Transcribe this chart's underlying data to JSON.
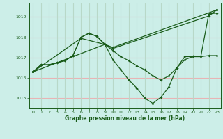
{
  "title": "Graphe pression niveau de la mer (hPa)",
  "bg_color": "#cceee8",
  "grid_color_h": "#e8b4b4",
  "grid_color_v": "#b8d8c8",
  "line_color": "#1a5c1a",
  "xlim": [
    -0.5,
    23.5
  ],
  "ylim": [
    1014.5,
    1019.7
  ],
  "yticks": [
    1015,
    1016,
    1017,
    1018,
    1019
  ],
  "xticks": [
    0,
    1,
    2,
    3,
    4,
    5,
    6,
    7,
    8,
    9,
    10,
    11,
    12,
    13,
    14,
    15,
    16,
    17,
    18,
    19,
    20,
    21,
    22,
    23
  ],
  "series1_x": [
    0,
    1,
    2,
    3,
    4,
    5,
    6,
    7,
    8,
    9,
    10,
    11,
    12,
    13,
    14,
    15,
    16,
    17,
    18,
    19,
    20,
    21,
    22,
    23
  ],
  "series1_y": [
    1016.3,
    1016.65,
    1016.65,
    1016.75,
    1016.85,
    1017.1,
    1018.0,
    1018.2,
    1018.05,
    1017.65,
    1016.9,
    1016.4,
    1015.9,
    1015.5,
    1015.0,
    1014.75,
    1015.05,
    1015.55,
    1016.5,
    1017.05,
    1017.05,
    1017.05,
    1019.15,
    1019.2
  ],
  "series2_x": [
    0,
    1,
    2,
    3,
    4,
    5,
    6,
    7,
    8,
    9,
    10,
    11,
    12,
    13,
    14,
    15,
    16,
    17,
    18,
    19,
    20,
    21,
    22,
    23
  ],
  "series2_y": [
    1016.3,
    1016.65,
    1016.65,
    1016.75,
    1016.85,
    1017.1,
    1018.0,
    1018.2,
    1018.05,
    1017.65,
    1017.35,
    1017.05,
    1016.85,
    1016.6,
    1016.4,
    1016.1,
    1015.9,
    1016.1,
    1016.5,
    1016.9,
    1017.05,
    1017.05,
    1017.1,
    1017.1
  ],
  "series3_x": [
    0,
    9,
    10,
    23
  ],
  "series3_y": [
    1016.3,
    1017.65,
    1017.5,
    1019.35
  ],
  "series4_x": [
    0,
    6,
    9,
    10,
    22,
    23
  ],
  "series4_y": [
    1016.3,
    1017.95,
    1017.65,
    1017.45,
    1019.05,
    1019.35
  ]
}
